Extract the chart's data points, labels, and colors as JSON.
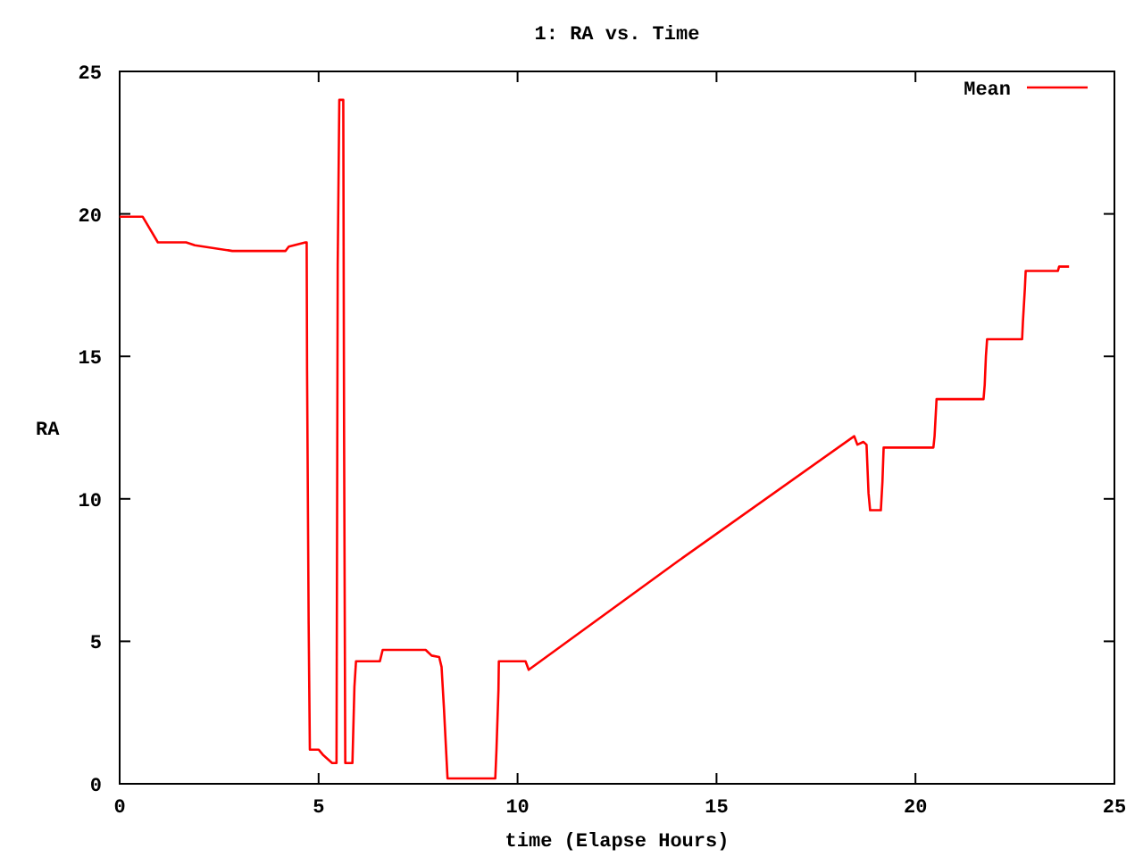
{
  "chart_data": {
    "type": "line",
    "title": "1: RA vs. Time",
    "xlabel": "time (Elapse Hours)",
    "ylabel": "RA",
    "xlim": [
      0,
      25
    ],
    "ylim": [
      0,
      25
    ],
    "xticks": [
      0,
      5,
      10,
      15,
      20,
      25
    ],
    "yticks": [
      0,
      5,
      10,
      15,
      20,
      25
    ],
    "grid": false,
    "legend": "top right",
    "marker": "none",
    "line_style": "solid",
    "series": [
      {
        "name": "Mean",
        "color": "#ff0000",
        "x": [
          0,
          0.58,
          0.96,
          1.67,
          1.89,
          2.83,
          4.17,
          4.25,
          4.67,
          4.7,
          4.71,
          4.75,
          4.78,
          5.0,
          5.12,
          5.34,
          5.45,
          5.46,
          5.48,
          5.52,
          5.62,
          5.64,
          5.67,
          5.85,
          5.9,
          5.94,
          6.54,
          6.61,
          7.69,
          7.84,
          8.03,
          8.09,
          8.15,
          8.24,
          9.44,
          9.47,
          9.52,
          9.53,
          10.2,
          10.28,
          14.05,
          18.46,
          18.54,
          18.69,
          18.77,
          18.82,
          18.86,
          19.13,
          19.17,
          19.2,
          20.45,
          20.48,
          20.53,
          21.71,
          21.74,
          21.77,
          21.8,
          22.68,
          22.7,
          22.75,
          22.77,
          23.58,
          23.61,
          23.86
        ],
        "values": [
          19.9,
          19.9,
          19.0,
          19.0,
          18.9,
          18.7,
          18.7,
          18.85,
          19.0,
          19.0,
          14.5,
          5.6,
          1.2,
          1.2,
          1.0,
          0.73,
          0.73,
          6.5,
          18.2,
          24.0,
          24.0,
          12.4,
          0.73,
          0.73,
          3.4,
          4.3,
          4.3,
          4.7,
          4.7,
          4.5,
          4.45,
          4.1,
          2.65,
          0.19,
          0.19,
          1.2,
          3.3,
          4.3,
          4.3,
          4.0,
          7.83,
          12.2,
          11.9,
          12.0,
          11.9,
          10.2,
          9.6,
          9.6,
          10.6,
          11.8,
          11.8,
          12.2,
          13.5,
          13.5,
          14.0,
          15.0,
          15.6,
          15.6,
          16.2,
          17.4,
          18.0,
          18.0,
          18.15,
          18.15
        ]
      }
    ]
  }
}
